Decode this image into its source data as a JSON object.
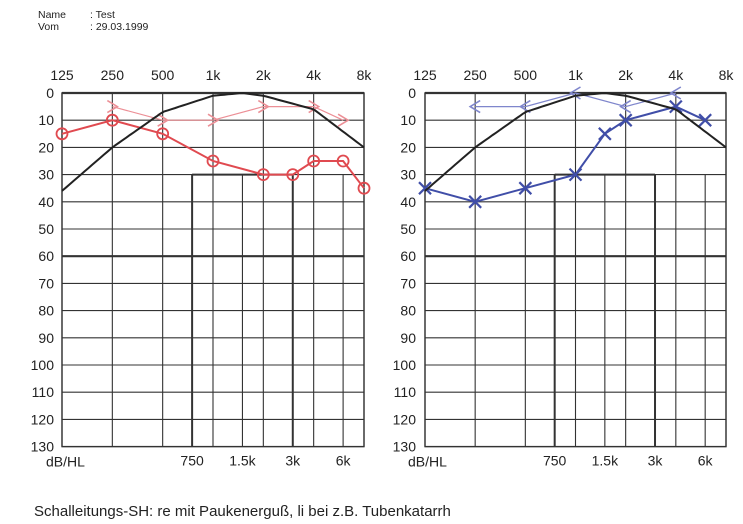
{
  "header": {
    "name_label": "Name",
    "name_value": ": Test",
    "date_label": "Vom",
    "date_value": ": 29.03.1999"
  },
  "caption": "Schalleitungs-SH:  re mit Paukenerguß, li bei z.B. Tubenkatarrh",
  "chart_data": [
    {
      "type": "line",
      "side": "right ear",
      "x_scale": "log",
      "xlim": [
        125,
        8000
      ],
      "ylim": [
        0,
        130
      ],
      "y_inverted": true,
      "top_tick_labels": [
        "125",
        "250",
        "500",
        "1k",
        "2k",
        "4k",
        "8k"
      ],
      "bottom_tick_labels": [
        "750",
        "1.5k",
        "3k",
        "6k"
      ],
      "y_tick_labels": [
        "0",
        "10",
        "20",
        "30",
        "40",
        "50",
        "60",
        "70",
        "80",
        "90",
        "100",
        "110",
        "120",
        "130"
      ],
      "ylabel": "dB/HL",
      "grid": true,
      "colors": {
        "air": "#e04a50",
        "bone": "#ec8f96",
        "curve": "#222222"
      },
      "series": [
        {
          "role": "air",
          "marker": "circle",
          "x": [
            125,
            250,
            500,
            1000,
            2000,
            3000,
            4000,
            6000,
            8000
          ],
          "y": [
            15,
            10,
            15,
            25,
            30,
            30,
            25,
            25,
            35
          ]
        },
        {
          "role": "bone",
          "marker": "chevron-right",
          "x": [
            250,
            500,
            1000,
            2000,
            4000,
            6000
          ],
          "y": [
            5,
            10,
            10,
            5,
            5,
            10
          ]
        },
        {
          "role": "reference",
          "marker": "none",
          "x": [
            125,
            250,
            500,
            1000,
            1500,
            2000,
            4000,
            8000
          ],
          "y": [
            36,
            20,
            7,
            1,
            0,
            1,
            6,
            20
          ]
        }
      ]
    },
    {
      "type": "line",
      "side": "left ear",
      "x_scale": "log",
      "xlim": [
        125,
        8000
      ],
      "ylim": [
        0,
        130
      ],
      "y_inverted": true,
      "top_tick_labels": [
        "125",
        "250",
        "500",
        "1k",
        "2k",
        "4k",
        "8k"
      ],
      "bottom_tick_labels": [
        "750",
        "1.5k",
        "3k",
        "6k"
      ],
      "y_tick_labels": [
        "0",
        "10",
        "20",
        "30",
        "40",
        "50",
        "60",
        "70",
        "80",
        "90",
        "100",
        "110",
        "120",
        "130"
      ],
      "ylabel": "dB/HL",
      "grid": true,
      "colors": {
        "air": "#404ea8",
        "bone": "#7f86cc",
        "curve": "#222222"
      },
      "series": [
        {
          "role": "air",
          "marker": "x",
          "x": [
            125,
            250,
            500,
            1000,
            1500,
            2000,
            4000,
            6000
          ],
          "y": [
            35,
            40,
            35,
            30,
            15,
            10,
            5,
            10
          ]
        },
        {
          "role": "bone",
          "marker": "chevron-left",
          "x": [
            250,
            500,
            1000,
            2000,
            4000
          ],
          "y": [
            5,
            5,
            0,
            5,
            0
          ]
        },
        {
          "role": "reference",
          "marker": "none",
          "x": [
            125,
            250,
            500,
            1000,
            1500,
            2000,
            4000,
            8000
          ],
          "y": [
            36,
            20,
            7,
            1,
            0,
            1,
            6,
            20
          ]
        }
      ]
    }
  ]
}
